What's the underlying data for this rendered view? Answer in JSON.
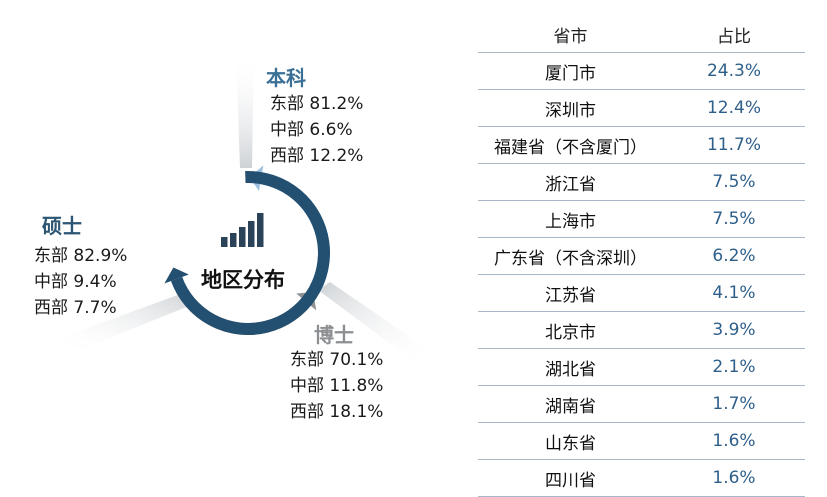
{
  "center_label": "地区分布",
  "degrees": [
    {
      "name": "本科",
      "color": "#3a6f96",
      "lines": [
        {
          "region": "东部",
          "pct": "81.2%"
        },
        {
          "region": "中部",
          "pct": "6.6%"
        },
        {
          "region": "西部",
          "pct": "12.2%"
        }
      ]
    },
    {
      "name": "硕士",
      "color": "#2b5572",
      "lines": [
        {
          "region": "东部",
          "pct": "82.9%"
        },
        {
          "region": "中部",
          "pct": "9.4%"
        },
        {
          "region": "西部",
          "pct": "7.7%"
        }
      ]
    },
    {
      "name": "博士",
      "color": "#8c8f92",
      "lines": [
        {
          "region": "东部",
          "pct": "70.1%"
        },
        {
          "region": "中部",
          "pct": "11.8%"
        },
        {
          "region": "西部",
          "pct": "18.1%"
        }
      ]
    }
  ],
  "colors": {
    "ring_light_blue": "#9fc1df",
    "ring_dark_blue": "#234f70",
    "ring_gray": "#8e9295",
    "icon": "#2b4358",
    "table_value": "#2e5f8a"
  },
  "icon": "bar-chart-icon",
  "chart_data": {
    "type": "table",
    "headers": [
      "省市",
      "占比"
    ],
    "rows": [
      [
        "厦门市",
        "24.3%"
      ],
      [
        "深圳市",
        "12.4%"
      ],
      [
        "福建省（不含厦门）",
        "11.7%"
      ],
      [
        "浙江省",
        "7.5%"
      ],
      [
        "上海市",
        "7.5%"
      ],
      [
        "广东省（不含深圳）",
        "6.2%"
      ],
      [
        "江苏省",
        "4.1%"
      ],
      [
        "北京市",
        "3.9%"
      ],
      [
        "湖北省",
        "2.1%"
      ],
      [
        "湖南省",
        "1.7%"
      ],
      [
        "山东省",
        "1.6%"
      ],
      [
        "四川省",
        "1.6%"
      ]
    ]
  }
}
